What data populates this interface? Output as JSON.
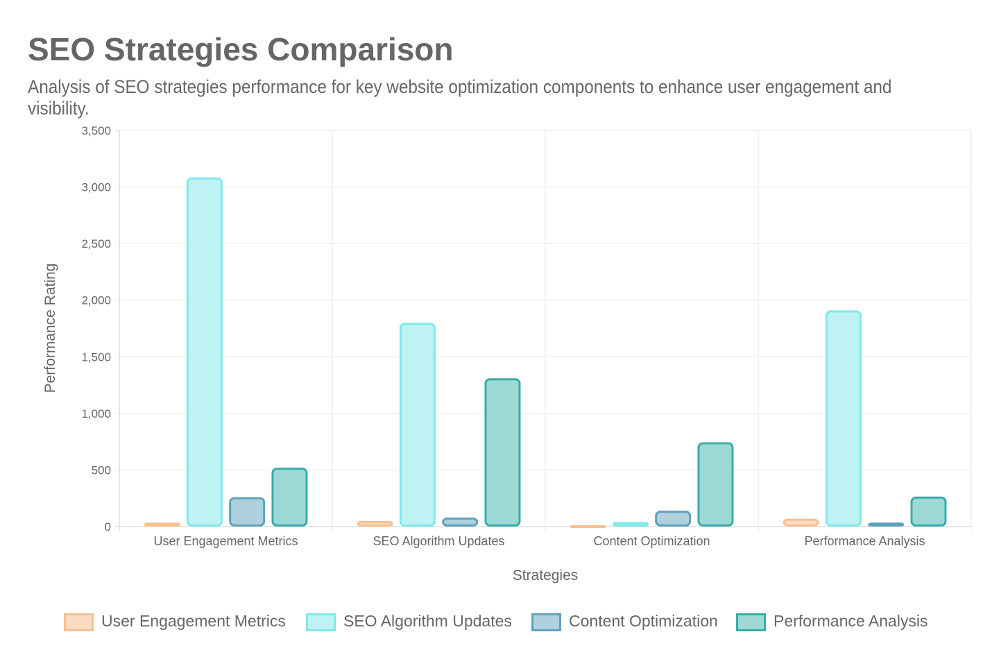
{
  "title": "SEO Strategies Comparison",
  "subtitle": "Analysis of SEO strategies performance for key website optimization components to enhance user engagement and visibility.",
  "chart_data": {
    "type": "bar",
    "xlabel": "Strategies",
    "ylabel": "Performance Rating",
    "ylim": [
      0,
      3500
    ],
    "yticks": [
      "0",
      "500",
      "1,000",
      "1,500",
      "2,000",
      "2,500",
      "3,000",
      "3,500"
    ],
    "categories": [
      "User Engagement Metrics",
      "SEO Algorithm Updates",
      "Content Optimization",
      "Performance Analysis"
    ],
    "grid": true,
    "legend": "bottom",
    "series": [
      {
        "name": "User Engagement Metrics",
        "values": [
          35,
          50,
          5,
          70
        ],
        "fill": "#fbdcc2",
        "stroke": "#f9c08f"
      },
      {
        "name": "SEO Algorithm Updates",
        "values": [
          3085,
          1800,
          40,
          1910
        ],
        "fill": "#bff3f3",
        "stroke": "#7ee9ea"
      },
      {
        "name": "Content Optimization",
        "values": [
          260,
          80,
          140,
          35
        ],
        "fill": "#b1d0dd",
        "stroke": "#5fa1bd"
      },
      {
        "name": "Performance Analysis",
        "values": [
          520,
          1310,
          745,
          265
        ],
        "fill": "#9ed8d5",
        "stroke": "#3aaca8"
      }
    ]
  }
}
